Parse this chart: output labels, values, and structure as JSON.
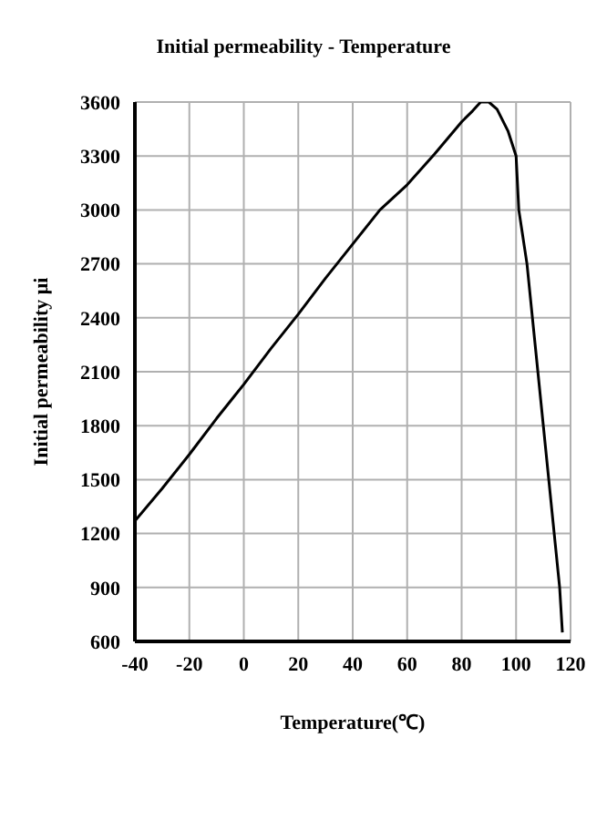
{
  "chart_data": {
    "type": "line",
    "title": "Initial permeability - Temperature",
    "xlabel": "Temperature(℃)",
    "ylabel": "Initial permeability μi",
    "x": [
      -40,
      -30,
      -20,
      -10,
      0,
      10,
      20,
      30,
      40,
      50,
      60,
      70,
      80,
      84,
      87,
      90,
      93,
      97,
      100,
      101,
      104,
      106,
      108,
      110,
      112,
      114,
      116,
      117
    ],
    "series": [
      {
        "color": "#000000",
        "values": [
          1270,
          1450,
          1640,
          1840,
          2030,
          2230,
          2420,
          2620,
          2810,
          3000,
          3140,
          3310,
          3490,
          3550,
          3600,
          3600,
          3560,
          3440,
          3300,
          3000,
          2700,
          2400,
          2100,
          1800,
          1500,
          1200,
          900,
          650
        ]
      }
    ],
    "xlim": [
      -40,
      120
    ],
    "xticks": [
      -40,
      -20,
      0,
      20,
      40,
      60,
      80,
      100,
      120
    ],
    "ylim": [
      600,
      3600
    ],
    "yticks": [
      600,
      900,
      1200,
      1500,
      1800,
      2100,
      2400,
      2700,
      3000,
      3300,
      3600
    ],
    "grid": true,
    "legend": false,
    "marker": "none",
    "line_style": "solid"
  }
}
